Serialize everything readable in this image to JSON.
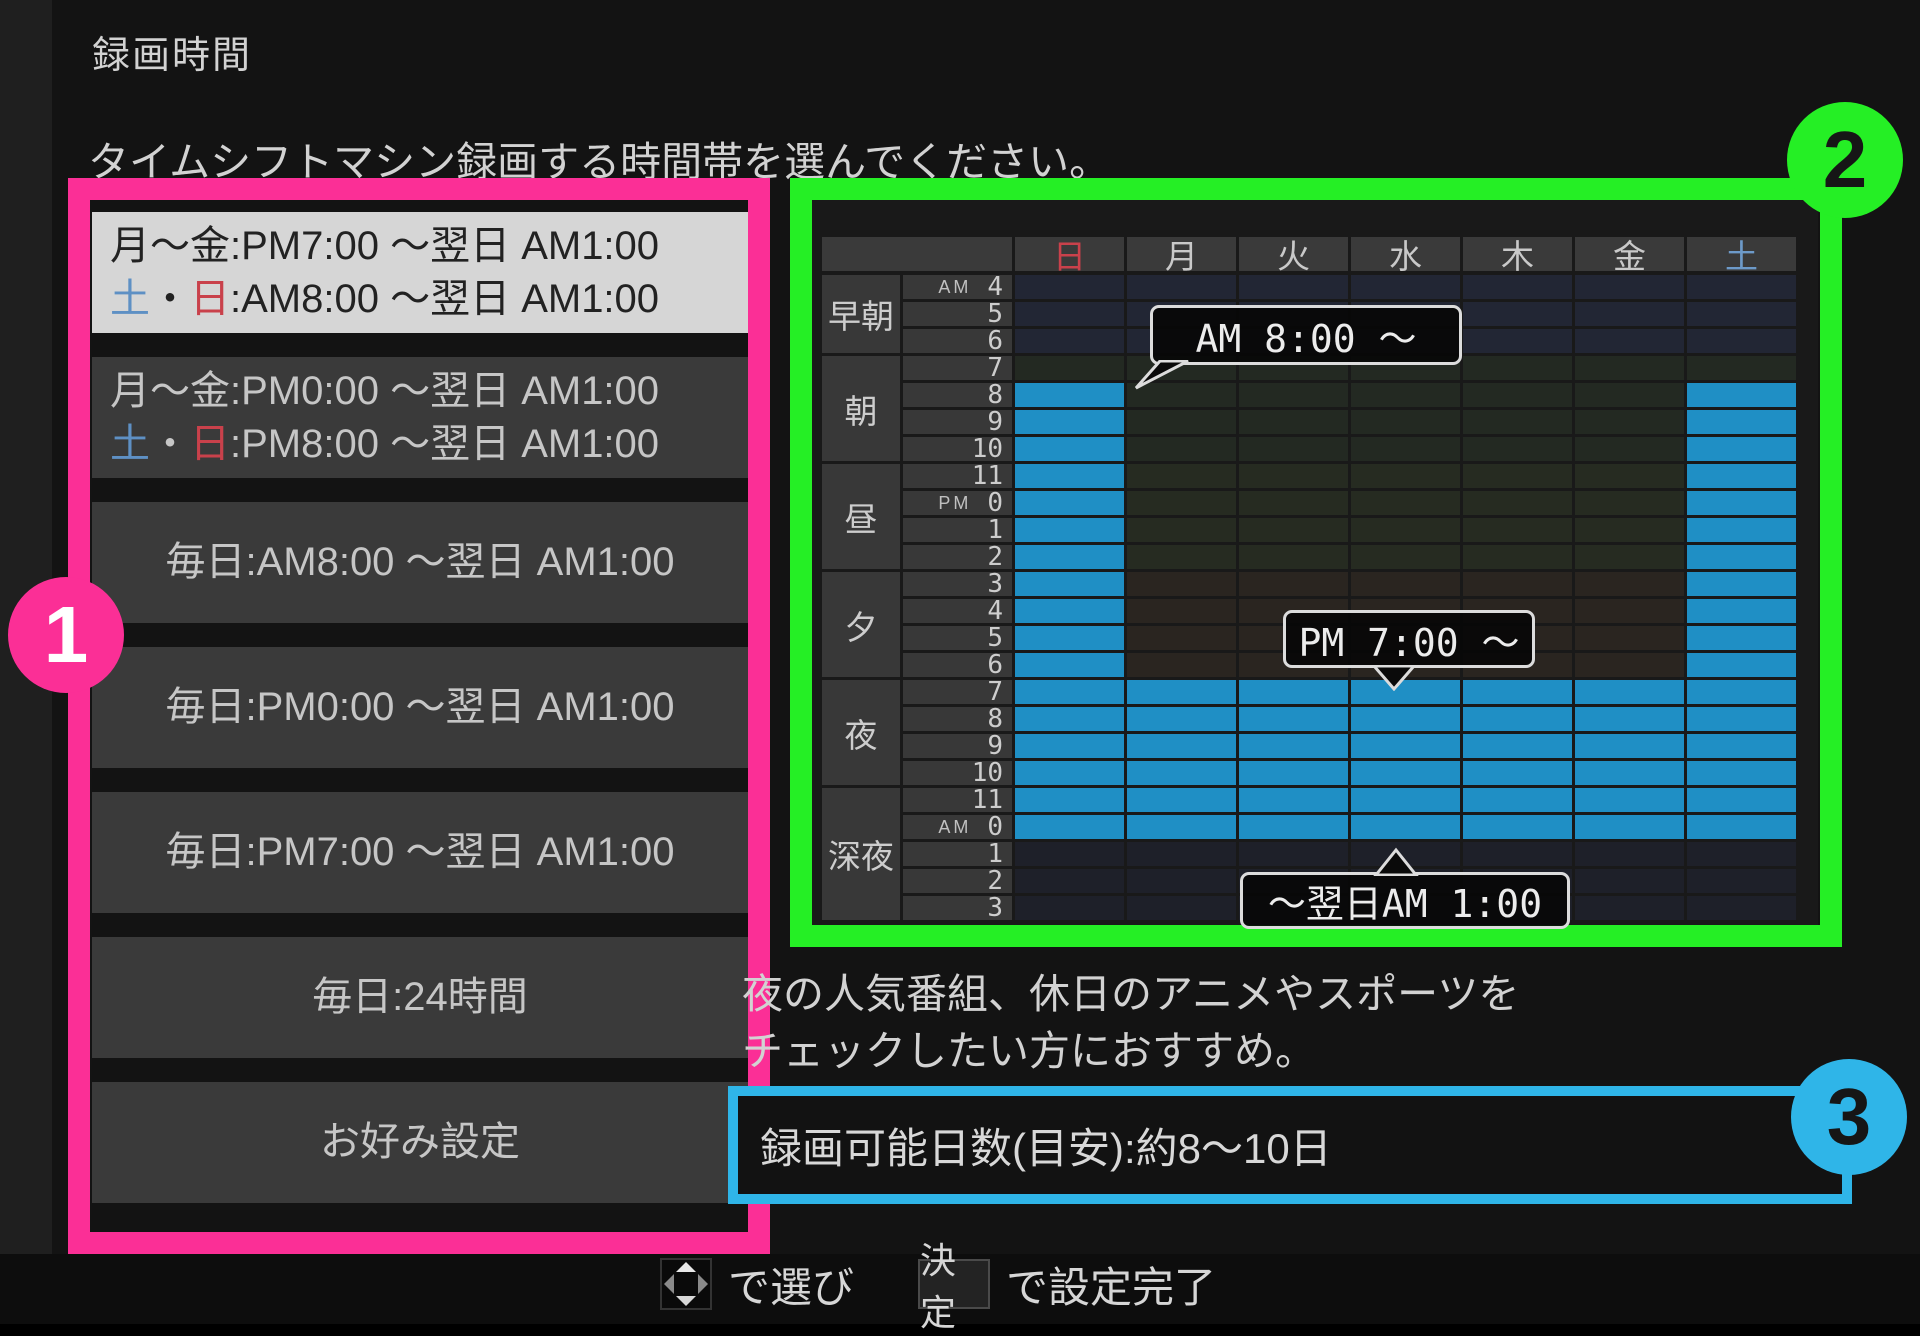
{
  "page": {
    "title": "録画時間",
    "subtitle": "タイムシフトマシン録画する時間帯を選んでください。"
  },
  "annotations": [
    {
      "number": "1",
      "color": "#fb2f96",
      "target": "recording-time-options"
    },
    {
      "number": "2",
      "color": "#25ef25",
      "target": "weekly-schedule-grid"
    },
    {
      "number": "3",
      "color": "#2fb5e8",
      "target": "recordable-days-info"
    }
  ],
  "options": {
    "items": [
      {
        "selected": true,
        "lines": [
          [
            {
              "t": "月〜金:PM7:00 〜翌日 AM1:00"
            }
          ],
          [
            {
              "t": "土",
              "c": "sat"
            },
            {
              "t": "・"
            },
            {
              "t": "日",
              "c": "sun"
            },
            {
              "t": ":AM8:00 〜翌日 AM1:00"
            }
          ]
        ]
      },
      {
        "selected": false,
        "lines": [
          [
            {
              "t": "月〜金:PM0:00 〜翌日 AM1:00"
            }
          ],
          [
            {
              "t": "土",
              "c": "sat"
            },
            {
              "t": "・"
            },
            {
              "t": "日",
              "c": "sun"
            },
            {
              "t": ":PM8:00 〜翌日 AM1:00"
            }
          ]
        ]
      },
      {
        "selected": false,
        "lines": [
          [
            {
              "t": "毎日:AM8:00 〜翌日 AM1:00"
            }
          ]
        ]
      },
      {
        "selected": false,
        "lines": [
          [
            {
              "t": "毎日:PM0:00 〜翌日 AM1:00"
            }
          ]
        ]
      },
      {
        "selected": false,
        "lines": [
          [
            {
              "t": "毎日:PM7:00 〜翌日 AM1:00"
            }
          ]
        ]
      },
      {
        "selected": false,
        "lines": [
          [
            {
              "t": "毎日:24時間"
            }
          ]
        ]
      },
      {
        "selected": false,
        "lines": [
          [
            {
              "t": "お好み設定"
            }
          ]
        ]
      }
    ]
  },
  "chart_data": {
    "type": "heatmap",
    "title": "weekly recording schedule",
    "x_categories": [
      "日",
      "月",
      "火",
      "水",
      "木",
      "金",
      "土"
    ],
    "y_categories": [
      "AM 4",
      "5",
      "6",
      "7",
      "8",
      "9",
      "10",
      "11",
      "PM 0",
      "1",
      "2",
      "3",
      "4",
      "5",
      "6",
      "7",
      "8",
      "9",
      "10",
      "11",
      "AM 0",
      "1",
      "2",
      "3"
    ],
    "period_groups": [
      {
        "label": "早朝",
        "rows": 3
      },
      {
        "label": "朝",
        "rows": 4
      },
      {
        "label": "昼",
        "rows": 4
      },
      {
        "label": "夕",
        "rows": 4
      },
      {
        "label": "夜",
        "rows": 4
      },
      {
        "label": "深夜",
        "rows": 5
      }
    ],
    "days": [
      {
        "label": "日",
        "cls": "sun",
        "fill_rows": [
          4,
          20
        ]
      },
      {
        "label": "月",
        "cls": "",
        "fill_rows": [
          15,
          20
        ]
      },
      {
        "label": "火",
        "cls": "",
        "fill_rows": [
          15,
          20
        ]
      },
      {
        "label": "水",
        "cls": "",
        "fill_rows": [
          15,
          20
        ]
      },
      {
        "label": "木",
        "cls": "",
        "fill_rows": [
          15,
          20
        ]
      },
      {
        "label": "金",
        "cls": "",
        "fill_rows": [
          15,
          20
        ]
      },
      {
        "label": "土",
        "cls": "sat",
        "fill_rows": [
          4,
          20
        ]
      }
    ],
    "callouts": {
      "weekend_start": "AM 8:00 〜",
      "weekday_start": "PM 7:00 〜",
      "end": "〜翌日AM 1:00"
    },
    "fill_color": "#1f8fc5"
  },
  "description": {
    "line1": "夜の人気番組、休日のアニメやスポーツを",
    "line2": "チェックしたい方におすすめ。"
  },
  "capacity": {
    "text": "録画可能日数(目安):約8〜10日"
  },
  "hints": {
    "select_label": "で選び",
    "confirm_key": "決定",
    "confirm_label": "で設定完了"
  },
  "colors": {
    "accent_pink": "#fb2f96",
    "accent_green": "#25ef25",
    "accent_cyan": "#2fb5e8",
    "fill_blue": "#1f8fc5",
    "sunday_red": "#c9414b",
    "saturday_blue": "#6d9ac9",
    "selected_item_bg": "#d6d6d6",
    "item_bg": "#3a3a3a"
  }
}
